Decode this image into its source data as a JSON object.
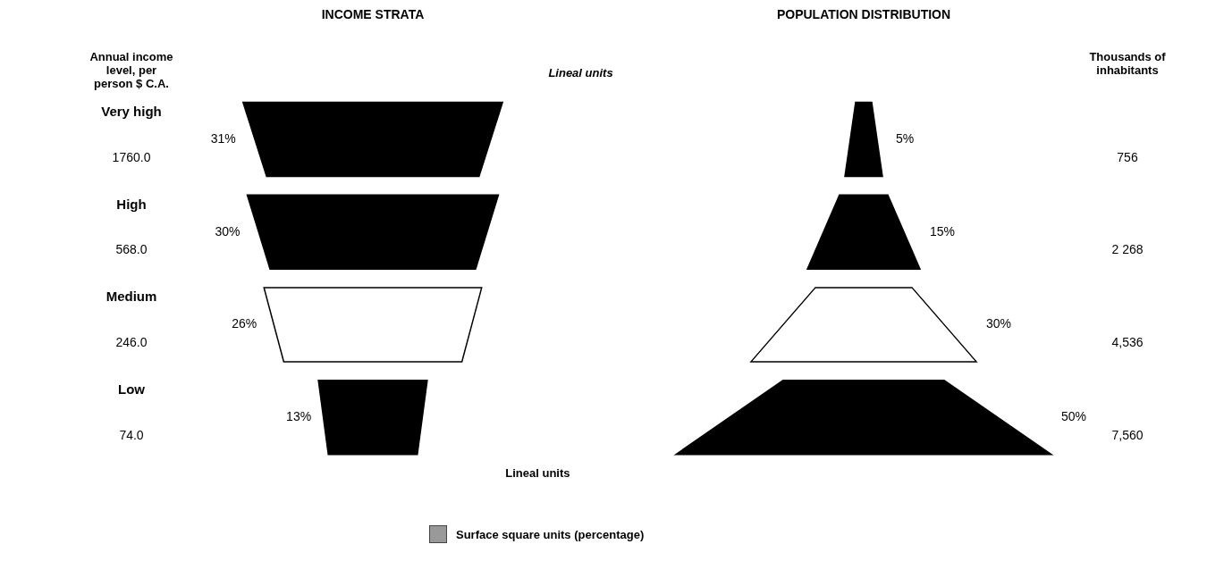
{
  "chart_data": [
    {
      "type": "other",
      "title": "INCOME STRATA",
      "categories": [
        "Very high",
        "High",
        "Medium",
        "Low"
      ],
      "values": [
        31,
        30,
        26,
        13
      ],
      "value_labels": [
        "31%",
        "30%",
        "26%",
        "13%"
      ],
      "colors": [
        "#000000",
        "#000000",
        "#ffffff",
        "#000000"
      ],
      "annotations": [
        "Annual income level, per person $ C.A.",
        "1760.0",
        "568.0",
        "246.0",
        "74.0",
        "Surface square units (percentage)"
      ],
      "xlabel": "Lineal units",
      "ylabel": "Lineal units"
    },
    {
      "type": "other",
      "title": "POPULATION DISTRIBUTION",
      "categories": [
        null,
        null,
        null,
        null
      ],
      "values": [
        5,
        15,
        30,
        50
      ],
      "value_labels": [
        "5%",
        "15%",
        "30%",
        "50%"
      ],
      "colors": [
        "#000000",
        "#000000",
        "#ffffff",
        "#000000"
      ],
      "annotations": [
        "Thousands of inhabitants",
        "756",
        "2 268",
        "4,536",
        "7,560"
      ]
    }
  ]
}
